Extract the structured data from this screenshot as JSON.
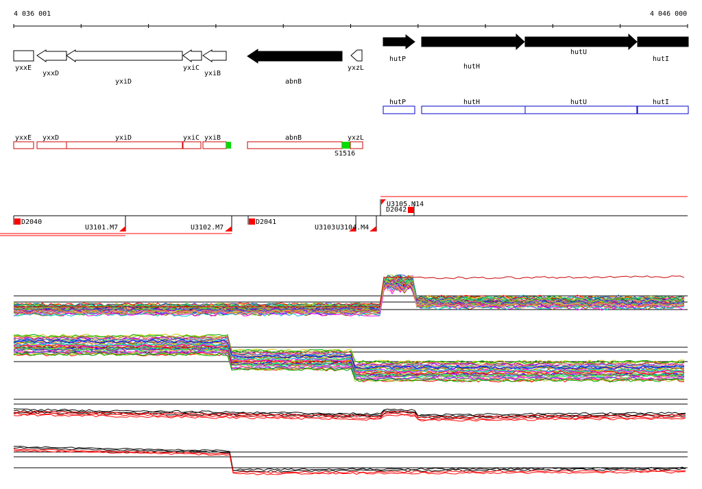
{
  "ruler": {
    "start_label": "4 036 001",
    "end_label": "4 046 000"
  },
  "colors": {
    "annotated_gene_fill": "#000000",
    "annotated_gene_outline": "#000000",
    "blue_box": "#0000cc",
    "red_box": "#cc0000",
    "green_mark": "#00dd00",
    "red_mark": "#ff0000",
    "track_black": "#000000",
    "track_red": "#ff0000"
  },
  "genes_track": [
    {
      "name": "yxxE",
      "label": "yxxE",
      "strand": "none",
      "filled": false
    },
    {
      "name": "yxxD",
      "label": "yxxD",
      "strand": "-",
      "filled": false
    },
    {
      "name": "yxiD",
      "label": "yxiD",
      "strand": "-",
      "filled": false
    },
    {
      "name": "yxiC",
      "label": "yxiC",
      "strand": "-",
      "filled": false
    },
    {
      "name": "yxiB",
      "label": "yxiB",
      "strand": "-",
      "filled": false
    },
    {
      "name": "abnB",
      "label": "abnB",
      "strand": "-",
      "filled": true
    },
    {
      "name": "yxzL",
      "label": "yxzL",
      "strand": "-",
      "filled": false
    },
    {
      "name": "hutP",
      "label": "hutP",
      "strand": "+",
      "filled": true
    },
    {
      "name": "hutH",
      "label": "hutH",
      "strand": "+",
      "filled": true
    },
    {
      "name": "hutU",
      "label": "hutU",
      "strand": "+",
      "filled": true
    },
    {
      "name": "hutI",
      "label": "hutI",
      "strand": "+",
      "filled": true
    }
  ],
  "blue_boxes": [
    {
      "label": "hutP"
    },
    {
      "label": "hutH"
    },
    {
      "label": "hutU"
    },
    {
      "label": "hutI"
    }
  ],
  "red_boxes": [
    {
      "label": "yxxE"
    },
    {
      "label": "yxxD"
    },
    {
      "label": "yxiD"
    },
    {
      "label": "yxiC"
    },
    {
      "label": "yxiB"
    },
    {
      "label": "abnB"
    },
    {
      "label": "yxzL"
    }
  ],
  "red_box_annotation": "S1516",
  "segments": {
    "D2040": "D2040",
    "U3101": "U3101.M7",
    "U3102": "U3102.M7",
    "D2041": "D2041",
    "U3103": "U3103",
    "U3104": "U3104.M4",
    "U3105": "U3105.M14",
    "D2042": "D2042"
  }
}
